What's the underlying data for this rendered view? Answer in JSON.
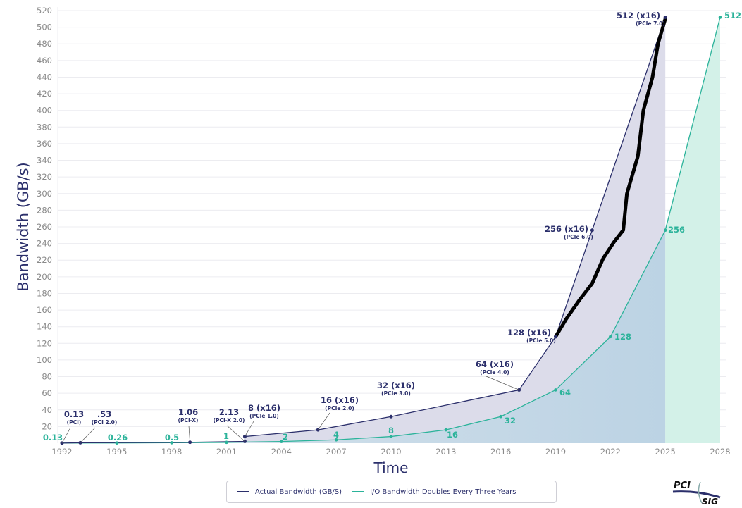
{
  "chart_data": {
    "type": "area",
    "xlabel": "Time",
    "ylabel": "Bandwidth (GB/s)",
    "xlim": [
      1992,
      2028
    ],
    "ylim": [
      0,
      520
    ],
    "x_ticks": [
      1992,
      1995,
      1998,
      2001,
      2004,
      2007,
      2010,
      2013,
      2016,
      2019,
      2022,
      2025,
      2028
    ],
    "y_ticks": [
      20,
      40,
      60,
      80,
      100,
      120,
      140,
      160,
      180,
      200,
      220,
      240,
      260,
      280,
      300,
      320,
      340,
      360,
      380,
      400,
      420,
      440,
      460,
      480,
      500,
      520
    ],
    "grid": "horizontal",
    "legend_position": "bottom",
    "series": [
      {
        "name": "Actual Bandwidth (GB/S)",
        "color": "#2b2f6b",
        "fill": "#dcdcea",
        "points": [
          {
            "x": 1992,
            "y": 0.13,
            "label": "0.13",
            "sub": "(PCI)"
          },
          {
            "x": 1993,
            "y": 0.53,
            "label": ".53",
            "sub": "(PCI 2.0)"
          },
          {
            "x": 1999,
            "y": 1.06,
            "label": "1.06",
            "sub": "(PCI-X)"
          },
          {
            "x": 2002,
            "y": 2.13,
            "label": "2.13",
            "sub": "(PCI-X 2.0)"
          },
          {
            "x": 2002,
            "y": 8,
            "label": "8 (x16)",
            "sub": "(PCIe 1.0)"
          },
          {
            "x": 2006,
            "y": 16,
            "label": "16 (x16)",
            "sub": "(PCIe 2.0)"
          },
          {
            "x": 2010,
            "y": 32,
            "label": "32 (x16)",
            "sub": "(PCIe 3.0)"
          },
          {
            "x": 2017,
            "y": 64,
            "label": "64 (x16)",
            "sub": "(PCIe 4.0)"
          },
          {
            "x": 2019,
            "y": 128,
            "label": "128 (x16)",
            "sub": "(PCIe 5.0)"
          },
          {
            "x": 2021,
            "y": 256,
            "label": "256 (x16)",
            "sub": "(PCIe 6.0)"
          },
          {
            "x": 2025,
            "y": 512,
            "label": "512 (x16)",
            "sub": "(PCIe 7.0)"
          }
        ]
      },
      {
        "name": "I/O Bandwidth Doubles Every Three Years",
        "color": "#2bb39a",
        "fill": "#c6d9e6",
        "fill_after_2025": "#d3f1e8",
        "points": [
          {
            "x": 1992,
            "y": 0.13,
            "label": "0.13"
          },
          {
            "x": 1995,
            "y": 0.26,
            "label": "0.26"
          },
          {
            "x": 1998,
            "y": 0.5,
            "label": "0.5"
          },
          {
            "x": 2001,
            "y": 1,
            "label": "1"
          },
          {
            "x": 2004,
            "y": 2,
            "label": "2"
          },
          {
            "x": 2007,
            "y": 4,
            "label": "4"
          },
          {
            "x": 2010,
            "y": 8,
            "label": "8"
          },
          {
            "x": 2013,
            "y": 16,
            "label": "16"
          },
          {
            "x": 2016,
            "y": 32,
            "label": "32"
          },
          {
            "x": 2019,
            "y": 64,
            "label": "64"
          },
          {
            "x": 2022,
            "y": 128,
            "label": "128"
          },
          {
            "x": 2025,
            "y": 256,
            "label": "256"
          },
          {
            "x": 2028,
            "y": 512,
            "label": "512"
          }
        ]
      }
    ],
    "annotation": {
      "type": "hand-drawn line",
      "color": "#000000",
      "points": [
        [
          2019,
          128
        ],
        [
          2019.6,
          150
        ],
        [
          2020.3,
          172
        ],
        [
          2021,
          192
        ],
        [
          2021.6,
          222
        ],
        [
          2022.2,
          242
        ],
        [
          2022.7,
          256
        ],
        [
          2022.9,
          300
        ],
        [
          2023.5,
          345
        ],
        [
          2023.8,
          400
        ],
        [
          2024.3,
          440
        ],
        [
          2024.6,
          480
        ],
        [
          2025,
          510
        ]
      ]
    }
  },
  "legend": {
    "items": [
      {
        "label": "Actual Bandwidth (GB/S)",
        "color": "#2b2f6b"
      },
      {
        "label": "I/O Bandwidth Doubles Every Three Years",
        "color": "#2bb39a"
      }
    ]
  },
  "logo": {
    "text_top": "PCI",
    "text_bottom": "SIG"
  }
}
